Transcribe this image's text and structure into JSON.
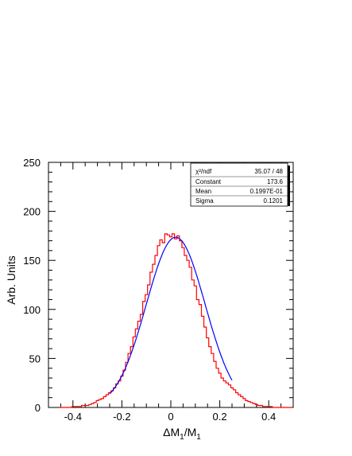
{
  "chart_data": {
    "type": "line",
    "title": "",
    "xlabel": "ΔM1/M1",
    "ylabel": "Arb. Units",
    "xlim": [
      -0.5,
      0.5
    ],
    "ylim": [
      0,
      250
    ],
    "x_ticks": [
      -0.4,
      -0.2,
      0,
      0.2,
      0.4
    ],
    "y_ticks": [
      0,
      50,
      100,
      150,
      200,
      250
    ],
    "grid": false,
    "legend": "none",
    "series": [
      {
        "kind": "histogram",
        "color": "#ff0000",
        "bin_width": 0.01,
        "x": [
          -0.45,
          -0.44,
          -0.43,
          -0.42,
          -0.41,
          -0.4,
          -0.39,
          -0.38,
          -0.37,
          -0.36,
          -0.35,
          -0.34,
          -0.33,
          -0.32,
          -0.31,
          -0.3,
          -0.29,
          -0.28,
          -0.27,
          -0.26,
          -0.25,
          -0.24,
          -0.23,
          -0.22,
          -0.21,
          -0.2,
          -0.19,
          -0.18,
          -0.17,
          -0.16,
          -0.15,
          -0.14,
          -0.13,
          -0.12,
          -0.11,
          -0.1,
          -0.09,
          -0.08,
          -0.07,
          -0.06,
          -0.05,
          -0.04,
          -0.03,
          -0.02,
          -0.01,
          0.0,
          0.01,
          0.02,
          0.03,
          0.04,
          0.05,
          0.06,
          0.07,
          0.08,
          0.09,
          0.1,
          0.11,
          0.12,
          0.13,
          0.14,
          0.15,
          0.16,
          0.17,
          0.18,
          0.19,
          0.2,
          0.21,
          0.22,
          0.23,
          0.24,
          0.25,
          0.26,
          0.27,
          0.28,
          0.29,
          0.3,
          0.31,
          0.32,
          0.33,
          0.34,
          0.35,
          0.36,
          0.37,
          0.38,
          0.39,
          0.4,
          0.41,
          0.42,
          0.43,
          0.44,
          0.45,
          0.46,
          0.47,
          0.48,
          0.49
        ],
        "values": [
          0,
          0,
          0,
          0,
          0,
          1,
          1,
          1,
          1,
          2,
          2,
          2,
          3,
          4,
          5,
          7,
          8,
          9,
          11,
          13,
          15,
          17,
          20,
          24,
          27,
          32,
          38,
          46,
          55,
          62,
          72,
          80,
          88,
          95,
          108,
          115,
          125,
          138,
          146,
          155,
          165,
          171,
          168,
          177,
          176,
          174,
          177,
          172,
          175,
          170,
          163,
          155,
          150,
          143,
          130,
          124,
          110,
          105,
          93,
          82,
          71,
          62,
          55,
          47,
          40,
          35,
          30,
          27,
          25,
          23,
          20,
          18,
          15,
          13,
          11,
          9,
          7,
          6,
          5,
          4,
          3,
          2,
          2,
          1,
          1,
          1,
          1,
          0,
          0,
          0,
          0,
          0,
          0,
          0,
          0
        ]
      },
      {
        "kind": "gaussian-fit",
        "color": "#0000ff",
        "range": [
          -0.25,
          0.25
        ],
        "constant": 173.6,
        "mean": 0.01997,
        "sigma": 0.1201
      }
    ]
  },
  "stats_box": {
    "rows": [
      {
        "label": "χ²/ndf",
        "value": "35.07   /   48"
      },
      {
        "label": "Constant",
        "value": "173.6"
      },
      {
        "label": "Mean",
        "value": "0.1997E-01"
      },
      {
        "label": "Sigma",
        "value": "0.1201"
      }
    ]
  }
}
